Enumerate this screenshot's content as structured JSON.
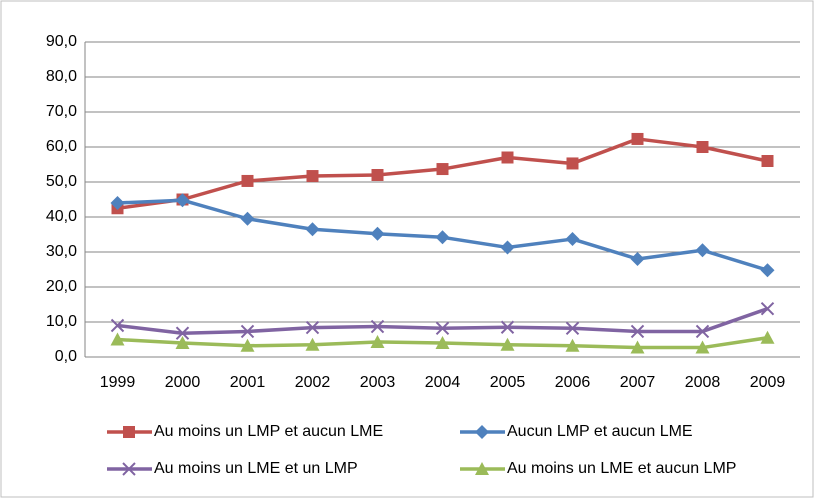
{
  "chart_data": {
    "type": "line",
    "categories": [
      "1999",
      "2000",
      "2001",
      "2002",
      "2003",
      "2004",
      "2005",
      "2006",
      "2007",
      "2008",
      "2009"
    ],
    "series": [
      {
        "name": "Au moins un LMP et aucun LME",
        "color": "#c0504d",
        "marker": "square",
        "values": [
          42.5,
          45,
          50.3,
          51.7,
          52,
          53.7,
          57,
          55.3,
          62.3,
          60,
          56
        ]
      },
      {
        "name": "Aucun LMP et aucun LME",
        "color": "#4f81bd",
        "marker": "diamond",
        "values": [
          44,
          44.8,
          39.5,
          36.5,
          35.2,
          34.2,
          31.3,
          33.7,
          28,
          30.5,
          24.8
        ]
      },
      {
        "name": "Au moins un LME et un LMP",
        "color": "#8064a2",
        "marker": "x",
        "values": [
          9,
          6.8,
          7.3,
          8.4,
          8.7,
          8.2,
          8.5,
          8.2,
          7.3,
          7.3,
          13.8
        ]
      },
      {
        "name": "Au moins un LME et aucun LMP",
        "color": "#9bbb59",
        "marker": "triangle",
        "values": [
          5,
          4,
          3.2,
          3.5,
          4.3,
          4,
          3.5,
          3.2,
          2.7,
          2.7,
          5.5
        ]
      }
    ],
    "ylim": [
      0,
      90
    ],
    "yticks": [
      {
        "value": 0,
        "label": "0,0"
      },
      {
        "value": 10,
        "label": "10,0"
      },
      {
        "value": 20,
        "label": "20,0"
      },
      {
        "value": 30,
        "label": "30,0"
      },
      {
        "value": 40,
        "label": "40,0"
      },
      {
        "value": 50,
        "label": "50,0"
      },
      {
        "value": 60,
        "label": "60,0"
      },
      {
        "value": 70,
        "label": "70,0"
      },
      {
        "value": 80,
        "label": "80,0"
      },
      {
        "value": 90,
        "label": "90,0"
      }
    ],
    "grid": true
  }
}
